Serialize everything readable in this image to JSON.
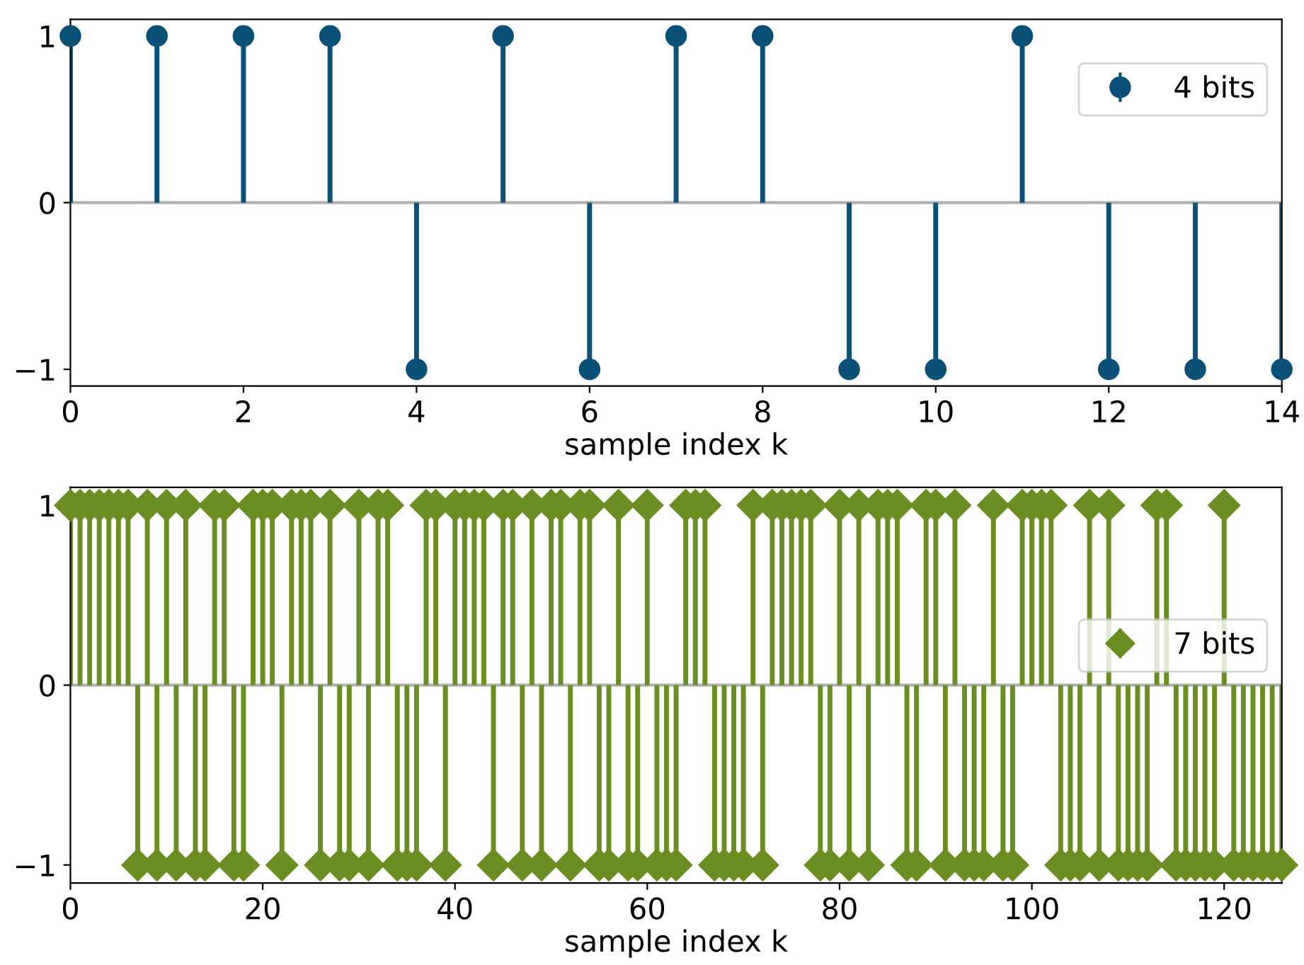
{
  "chart_data": [
    {
      "type": "lollipop",
      "xlabel": "sample index k",
      "x": [
        0,
        1,
        2,
        3,
        4,
        5,
        6,
        7,
        8,
        9,
        10,
        11,
        12,
        13,
        14
      ],
      "series": [
        {
          "name": "4 bits",
          "color": "#0b5177",
          "values": [
            1,
            1,
            1,
            1,
            -1,
            1,
            -1,
            1,
            1,
            -1,
            -1,
            1,
            -1,
            -1,
            -1
          ]
        }
      ],
      "xlim": [
        0,
        14
      ],
      "xticks": [
        0,
        2,
        4,
        6,
        8,
        10,
        12,
        14
      ],
      "ylim": [
        -1.1,
        1.1
      ],
      "yticks": [
        {
          "value": -1,
          "label": "−1"
        },
        0,
        1
      ],
      "marker": "circle",
      "legend": "upper right",
      "grid": false,
      "ref_lines": [
        {
          "axis": "y",
          "value": 0,
          "color": "#b0b0b0"
        }
      ]
    },
    {
      "type": "lollipop",
      "xlabel": "sample index k",
      "x": [
        0,
        1,
        2,
        3,
        4,
        5,
        6,
        7,
        8,
        9,
        10,
        11,
        12,
        13,
        14,
        15,
        16,
        17,
        18,
        19,
        20,
        21,
        22,
        23,
        24,
        25,
        26,
        27,
        28,
        29,
        30,
        31,
        32,
        33,
        34,
        35,
        36,
        37,
        38,
        39,
        40,
        41,
        42,
        43,
        44,
        45,
        46,
        47,
        48,
        49,
        50,
        51,
        52,
        53,
        54,
        55,
        56,
        57,
        58,
        59,
        60,
        61,
        62,
        63,
        64,
        65,
        66,
        67,
        68,
        69,
        70,
        71,
        72,
        73,
        74,
        75,
        76,
        77,
        78,
        79,
        80,
        81,
        82,
        83,
        84,
        85,
        86,
        87,
        88,
        89,
        90,
        91,
        92,
        93,
        94,
        95,
        96,
        97,
        98,
        99,
        100,
        101,
        102,
        103,
        104,
        105,
        106,
        107,
        108,
        109,
        110,
        111,
        112,
        113,
        114,
        115,
        116,
        117,
        118,
        119,
        120,
        121,
        122,
        123,
        124,
        125,
        126
      ],
      "series": [
        {
          "name": "7 bits",
          "color": "#6b8e23",
          "values": [
            1,
            1,
            1,
            1,
            1,
            1,
            1,
            -1,
            1,
            -1,
            1,
            -1,
            1,
            -1,
            -1,
            1,
            1,
            -1,
            -1,
            1,
            1,
            1,
            -1,
            1,
            1,
            1,
            -1,
            1,
            -1,
            -1,
            1,
            -1,
            1,
            1,
            -1,
            -1,
            -1,
            1,
            1,
            -1,
            1,
            1,
            1,
            1,
            -1,
            1,
            1,
            -1,
            1,
            -1,
            1,
            1,
            -1,
            1,
            1,
            -1,
            -1,
            1,
            -1,
            -1,
            1,
            -1,
            -1,
            -1,
            1,
            1,
            1,
            -1,
            -1,
            -1,
            -1,
            1,
            -1,
            1,
            1,
            1,
            1,
            1,
            -1,
            -1,
            1,
            -1,
            1,
            -1,
            1,
            1,
            1,
            -1,
            -1,
            1,
            1,
            -1,
            1,
            -1,
            -1,
            -1,
            1,
            -1,
            -1,
            1,
            1,
            1,
            1,
            -1,
            -1,
            -1,
            1,
            -1,
            1,
            -1,
            -1,
            -1,
            -1,
            1,
            1,
            -1,
            -1,
            -1,
            -1,
            -1,
            1,
            -1,
            -1,
            -1,
            -1,
            -1,
            -1
          ]
        }
      ],
      "xlim": [
        0,
        126
      ],
      "xticks": [
        0,
        20,
        40,
        60,
        80,
        100,
        120
      ],
      "ylim": [
        -1.1,
        1.1
      ],
      "yticks": [
        {
          "value": -1,
          "label": "−1"
        },
        0,
        1
      ],
      "marker": "diamond",
      "legend": "center right",
      "grid": false,
      "ref_lines": [
        {
          "axis": "y",
          "value": 0,
          "color": "#b0b0b0"
        }
      ]
    }
  ]
}
